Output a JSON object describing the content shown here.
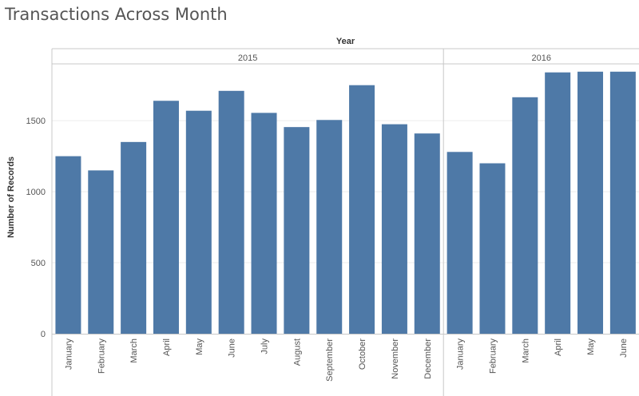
{
  "title": "Transactions Across Month",
  "chart_data": {
    "type": "bar",
    "title": "Transactions Across Month",
    "column_header": "Year",
    "ylabel": "Number of Records",
    "ylim": [
      0,
      1900
    ],
    "yticks": [
      0,
      500,
      1000,
      1500
    ],
    "gridlines": true,
    "bar_color": "#4e79a7",
    "panels": [
      {
        "year": "2015",
        "categories": [
          "January",
          "February",
          "March",
          "April",
          "May",
          "June",
          "July",
          "August",
          "September",
          "October",
          "November",
          "December"
        ],
        "values": [
          1250,
          1150,
          1350,
          1640,
          1570,
          1710,
          1555,
          1455,
          1505,
          1750,
          1475,
          1410
        ]
      },
      {
        "year": "2016",
        "categories": [
          "January",
          "February",
          "March",
          "April",
          "May",
          "June"
        ],
        "values": [
          1280,
          1200,
          1665,
          1840,
          1845,
          1845
        ]
      }
    ]
  }
}
